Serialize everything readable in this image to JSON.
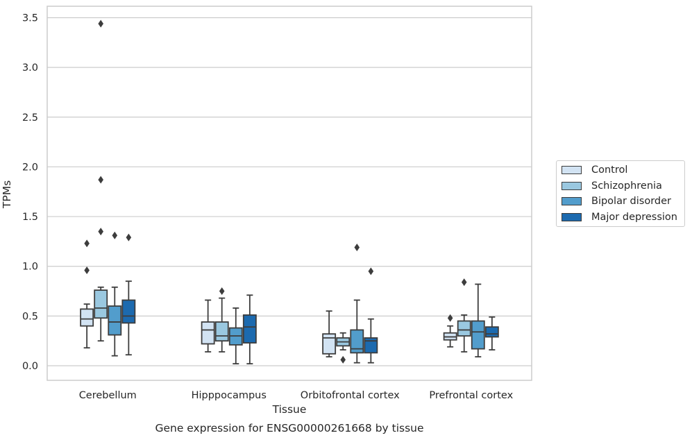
{
  "chart_data": {
    "type": "boxplot",
    "caption": "Gene expression for ENSG00000261668 by tissue",
    "xlabel": "Tissue",
    "ylabel": "TPMs",
    "ylim": [
      -0.14,
      3.6
    ],
    "yticks": [
      "0.0",
      "0.5",
      "1.0",
      "1.5",
      "2.0",
      "2.5",
      "3.0",
      "3.5"
    ],
    "ytick_values": [
      0.0,
      0.5,
      1.0,
      1.5,
      2.0,
      2.5,
      3.0,
      3.5
    ],
    "grid": true,
    "legend_position": "right",
    "categories": [
      "Cerebellum",
      "Hipppocampus",
      "Orbitofrontal cortex",
      "Prefrontal cortex"
    ],
    "series": [
      {
        "name": "Control",
        "color": "#d2e3f3",
        "boxes": [
          {
            "whislo": 0.18,
            "q1": 0.4,
            "med": 0.47,
            "q3": 0.57,
            "whishi": 0.62,
            "fliers": [
              1.23,
              0.96
            ]
          },
          {
            "whislo": 0.14,
            "q1": 0.22,
            "med": 0.36,
            "q3": 0.44,
            "whishi": 0.66,
            "fliers": []
          },
          {
            "whislo": 0.09,
            "q1": 0.12,
            "med": 0.28,
            "q3": 0.32,
            "whishi": 0.55,
            "fliers": []
          },
          {
            "whislo": 0.19,
            "q1": 0.26,
            "med": 0.29,
            "q3": 0.33,
            "whishi": 0.4,
            "fliers": [
              0.48
            ]
          }
        ]
      },
      {
        "name": "Schizophrenia",
        "color": "#9ac8e0",
        "boxes": [
          {
            "whislo": 0.25,
            "q1": 0.48,
            "med": 0.58,
            "q3": 0.76,
            "whishi": 0.79,
            "fliers": [
              3.44,
              1.87,
              1.35
            ]
          },
          {
            "whislo": 0.14,
            "q1": 0.25,
            "med": 0.3,
            "q3": 0.44,
            "whishi": 0.68,
            "fliers": [
              0.75
            ]
          },
          {
            "whislo": 0.16,
            "q1": 0.2,
            "med": 0.24,
            "q3": 0.28,
            "whishi": 0.33,
            "fliers": [
              0.06
            ]
          },
          {
            "whislo": 0.14,
            "q1": 0.3,
            "med": 0.36,
            "q3": 0.45,
            "whishi": 0.51,
            "fliers": [
              0.84
            ]
          }
        ]
      },
      {
        "name": "Bipolar disorder",
        "color": "#529dcc",
        "boxes": [
          {
            "whislo": 0.1,
            "q1": 0.31,
            "med": 0.44,
            "q3": 0.6,
            "whishi": 0.79,
            "fliers": [
              1.31
            ]
          },
          {
            "whislo": 0.02,
            "q1": 0.21,
            "med": 0.3,
            "q3": 0.38,
            "whishi": 0.58,
            "fliers": []
          },
          {
            "whislo": 0.03,
            "q1": 0.13,
            "med": 0.17,
            "q3": 0.36,
            "whishi": 0.66,
            "fliers": [
              1.19
            ]
          },
          {
            "whislo": 0.09,
            "q1": 0.17,
            "med": 0.34,
            "q3": 0.45,
            "whishi": 0.82,
            "fliers": []
          }
        ]
      },
      {
        "name": "Major depression",
        "color": "#1c6aaf",
        "boxes": [
          {
            "whislo": 0.11,
            "q1": 0.43,
            "med": 0.5,
            "q3": 0.66,
            "whishi": 0.85,
            "fliers": [
              1.29
            ]
          },
          {
            "whislo": 0.02,
            "q1": 0.23,
            "med": 0.39,
            "q3": 0.51,
            "whishi": 0.71,
            "fliers": []
          },
          {
            "whislo": 0.03,
            "q1": 0.13,
            "med": 0.25,
            "q3": 0.28,
            "whishi": 0.47,
            "fliers": [
              0.95
            ]
          },
          {
            "whislo": 0.16,
            "q1": 0.29,
            "med": 0.32,
            "q3": 0.39,
            "whishi": 0.49,
            "fliers": []
          }
        ]
      }
    ]
  }
}
